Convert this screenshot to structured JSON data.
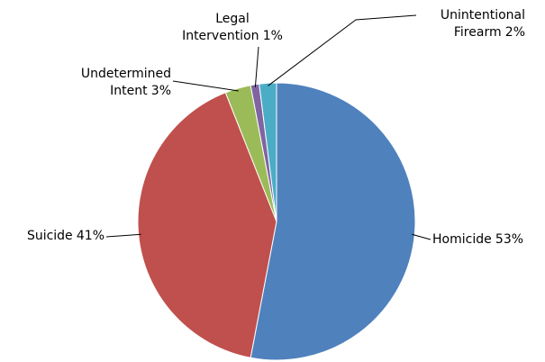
{
  "chart_data": {
    "type": "pie",
    "categories": [
      "Homicide",
      "Suicide",
      "Undetermined Intent",
      "Legal Intervention",
      "Unintentional Firearm"
    ],
    "values": [
      53,
      41,
      3,
      1,
      2
    ],
    "value_labels": [
      "53%",
      "41%",
      "3%",
      "1%",
      "2%"
    ],
    "colors": [
      "#4f81bd",
      "#c0504d",
      "#9bbb59",
      "#8064a2",
      "#4bacc6"
    ]
  }
}
